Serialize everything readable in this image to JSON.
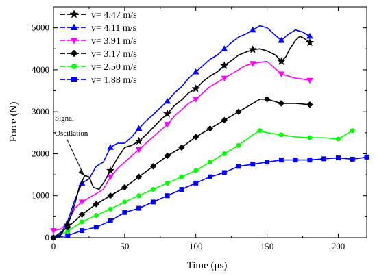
{
  "chart_data": {
    "type": "line",
    "xlabel": "Time (μs)",
    "ylabel": "Force  (N)",
    "xlim": [
      0,
      220
    ],
    "ylim": [
      0,
      5500
    ],
    "xticks": [
      0,
      50,
      100,
      150,
      200
    ],
    "yticks": [
      0,
      1000,
      2000,
      3000,
      4000,
      5000
    ],
    "grid": false,
    "legend_position": "top-left",
    "annotation": {
      "lines": [
        "Signal",
        "Oscillation"
      ],
      "x": 22,
      "y": 1470
    },
    "series": [
      {
        "name": "v= 4.47 m/s",
        "color": "#000000",
        "marker": "star",
        "x": [
          0,
          5,
          10,
          15,
          18,
          22,
          25,
          28,
          32,
          36,
          40,
          45,
          50,
          55,
          60,
          65,
          70,
          75,
          80,
          85,
          90,
          95,
          100,
          105,
          110,
          115,
          120,
          125,
          130,
          135,
          140,
          145,
          150,
          153,
          156,
          160,
          163,
          166,
          170,
          173,
          176,
          178,
          180
        ],
        "y": [
          0,
          60,
          300,
          800,
          1200,
          1480,
          1450,
          1200,
          1150,
          1350,
          1600,
          1900,
          2150,
          2200,
          2300,
          2450,
          2620,
          2800,
          2950,
          3150,
          3280,
          3450,
          3550,
          3720,
          3850,
          3950,
          4100,
          4220,
          4350,
          4420,
          4480,
          4500,
          4450,
          4400,
          4350,
          4200,
          4300,
          4500,
          4700,
          4800,
          4750,
          4700,
          4650
        ],
        "markers_x": [
          10,
          40,
          60,
          80,
          100,
          120,
          140,
          160,
          180
        ]
      },
      {
        "name": "v= 4.11 m/s",
        "color": "#0000ff",
        "marker": "triangle-up",
        "x": [
          0,
          5,
          10,
          15,
          20,
          25,
          30,
          35,
          40,
          45,
          50,
          55,
          60,
          65,
          70,
          75,
          80,
          85,
          90,
          95,
          100,
          105,
          110,
          115,
          120,
          125,
          130,
          135,
          140,
          145,
          150,
          155,
          160,
          165,
          170,
          175,
          180
        ],
        "y": [
          0,
          80,
          400,
          900,
          1300,
          1400,
          1700,
          1800,
          2150,
          2250,
          2250,
          2400,
          2600,
          2780,
          2930,
          3100,
          3250,
          3450,
          3600,
          3800,
          3950,
          4100,
          4250,
          4350,
          4500,
          4650,
          4780,
          4850,
          4950,
          5050,
          5000,
          4850,
          4700,
          4850,
          4950,
          4900,
          4800
        ],
        "markers_x": [
          20,
          40,
          60,
          80,
          100,
          120,
          140,
          160,
          180
        ]
      },
      {
        "name": "v= 3.91 m/s",
        "color": "#ff00ff",
        "marker": "triangle-down",
        "x": [
          0,
          5,
          10,
          15,
          20,
          25,
          30,
          35,
          40,
          45,
          50,
          55,
          60,
          65,
          70,
          75,
          80,
          85,
          90,
          95,
          100,
          105,
          110,
          115,
          120,
          125,
          130,
          135,
          140,
          145,
          150,
          155,
          160,
          165,
          170,
          175,
          180
        ],
        "y": [
          170,
          200,
          350,
          700,
          850,
          950,
          1050,
          1150,
          1450,
          1650,
          1800,
          1950,
          2100,
          2250,
          2400,
          2550,
          2700,
          2900,
          3050,
          3200,
          3300,
          3450,
          3600,
          3700,
          3800,
          3900,
          4000,
          4100,
          4150,
          4180,
          4200,
          4050,
          3900,
          3850,
          3800,
          3780,
          3750
        ],
        "markers_x": [
          0,
          20,
          40,
          60,
          80,
          100,
          120,
          140,
          160,
          180
        ]
      },
      {
        "name": "v= 3.17 m/s",
        "color": "#000000",
        "marker": "diamond",
        "x": [
          0,
          10,
          20,
          30,
          40,
          50,
          60,
          70,
          80,
          90,
          100,
          110,
          120,
          130,
          140,
          145,
          150,
          160,
          170,
          180
        ],
        "y": [
          0,
          250,
          550,
          800,
          1000,
          1200,
          1450,
          1700,
          1950,
          2150,
          2400,
          2600,
          2800,
          3000,
          3200,
          3300,
          3300,
          3200,
          3200,
          3170
        ],
        "markers_x": [
          0,
          10,
          20,
          30,
          40,
          50,
          60,
          70,
          80,
          90,
          100,
          110,
          120,
          130,
          150,
          160,
          180
        ]
      },
      {
        "name": "v= 2.50 m/s",
        "color": "#00ff00",
        "marker": "circle",
        "x": [
          0,
          10,
          20,
          30,
          40,
          50,
          60,
          70,
          80,
          90,
          100,
          110,
          120,
          130,
          140,
          145,
          150,
          160,
          170,
          180,
          190,
          200,
          205,
          210
        ],
        "y": [
          0,
          150,
          380,
          530,
          680,
          850,
          1000,
          1150,
          1300,
          1450,
          1600,
          1800,
          2000,
          2200,
          2450,
          2550,
          2500,
          2450,
          2400,
          2380,
          2380,
          2350,
          2450,
          2550
        ],
        "markers_x": [
          0,
          10,
          20,
          30,
          40,
          50,
          60,
          70,
          80,
          90,
          100,
          110,
          120,
          130,
          145,
          160,
          180,
          200,
          210
        ]
      },
      {
        "name": "v= 1.88 m/s",
        "color": "#0000ff",
        "marker": "square",
        "x": [
          0,
          10,
          20,
          30,
          40,
          50,
          60,
          70,
          80,
          90,
          100,
          110,
          120,
          130,
          140,
          150,
          160,
          170,
          180,
          190,
          200,
          210,
          220
        ],
        "y": [
          0,
          50,
          170,
          250,
          400,
          600,
          700,
          850,
          1000,
          1150,
          1300,
          1450,
          1550,
          1700,
          1750,
          1800,
          1850,
          1850,
          1850,
          1880,
          1900,
          1870,
          1920
        ],
        "markers_x": [
          0,
          10,
          20,
          30,
          40,
          50,
          60,
          70,
          80,
          90,
          100,
          110,
          120,
          130,
          140,
          150,
          160,
          170,
          180,
          190,
          200,
          210,
          220
        ]
      }
    ]
  }
}
